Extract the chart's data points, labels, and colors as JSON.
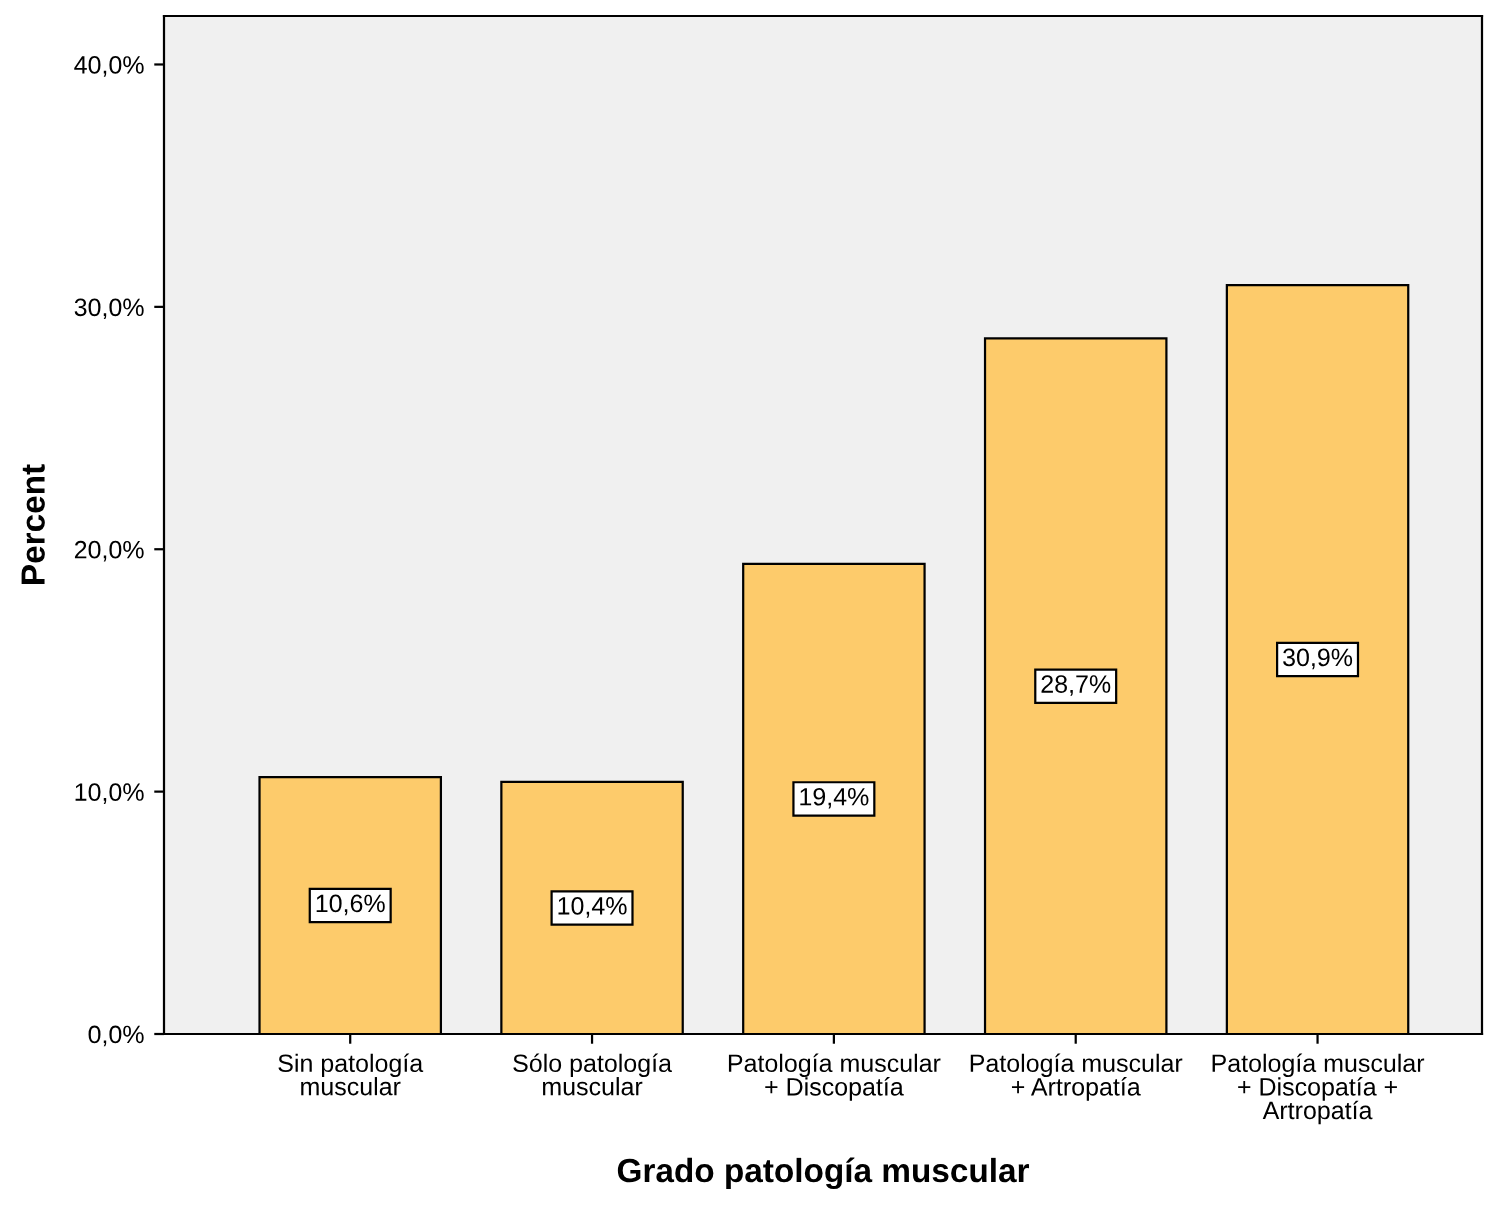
{
  "chart_data": {
    "type": "bar",
    "xlabel": "Grado patología muscular",
    "ylabel": "Percent",
    "categories": [
      "Sin patología\nmuscular",
      "Sólo patología\nmuscular",
      "Patología muscular\n+ Discopatía",
      "Patología muscular\n+ Artropatía",
      "Patología muscular\n+ Discopatía +\nArtropatía"
    ],
    "values": [
      10.6,
      10.4,
      19.4,
      28.7,
      30.9
    ],
    "value_labels": [
      "10,6%",
      "10,4%",
      "19,4%",
      "28,7%",
      "30,9%"
    ],
    "color": "#fdcb6b",
    "ylim": [
      0,
      42
    ],
    "yticks": [
      {
        "value": 0,
        "label": "0,0%"
      },
      {
        "value": 10,
        "label": "10,0%"
      },
      {
        "value": 20,
        "label": "20,0%"
      },
      {
        "value": 30,
        "label": "30,0%"
      },
      {
        "value": 40,
        "label": "40,0%"
      }
    ],
    "grid": false
  }
}
